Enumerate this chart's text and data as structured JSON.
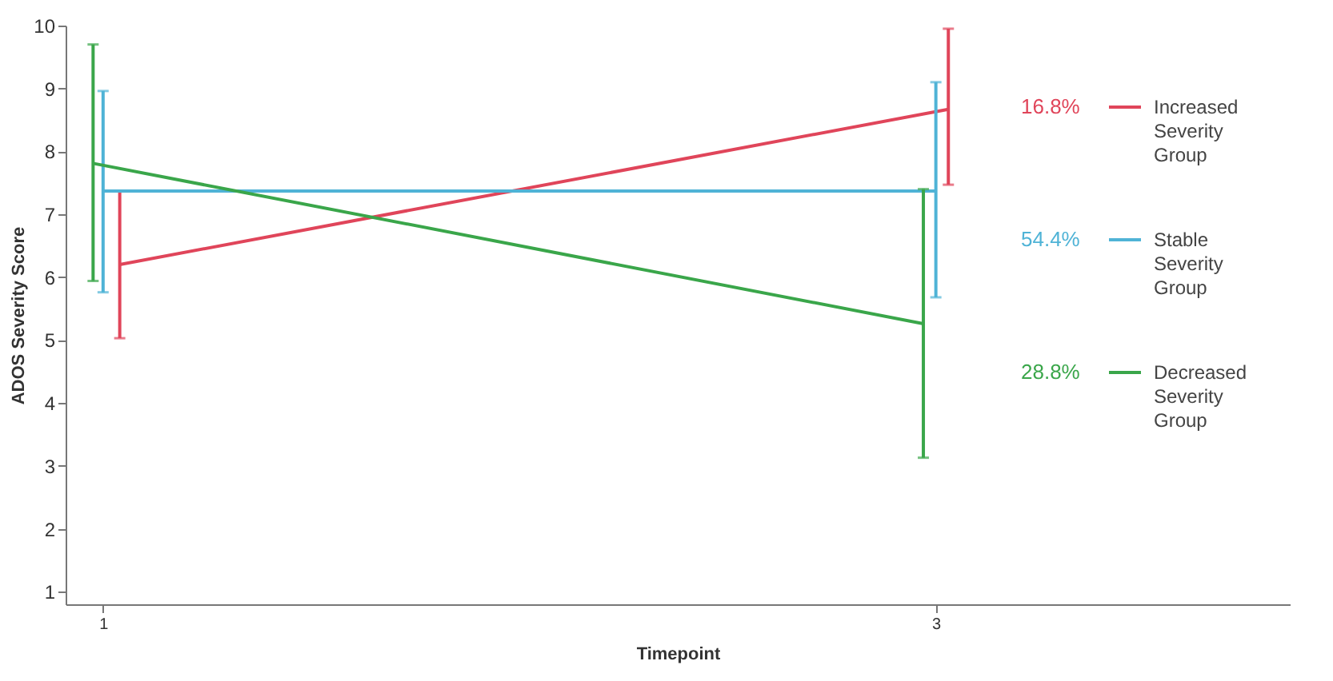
{
  "chart_data": {
    "type": "line",
    "xlabel": "Timepoint",
    "ylabel": "ADOS Severity Score",
    "xlim": [
      0.91,
      3.85
    ],
    "xticks": [
      1,
      3
    ],
    "ylim": [
      0.8,
      10
    ],
    "yticks": [
      1,
      2,
      3,
      4,
      5,
      6,
      7,
      8,
      9,
      10
    ],
    "grid": false,
    "legend": "right",
    "marker": "none",
    "line_style": "solid",
    "annotations": [
      "16.8%",
      "54.4%",
      "28.8%"
    ],
    "series": [
      {
        "name": "Increased Severity Group",
        "color": "#e0455a",
        "x": [
          1.04,
          3.03
        ],
        "values": [
          6.2,
          8.67
        ],
        "errors": [
          [
            5.03,
            7.37
          ],
          [
            7.47,
            9.95
          ]
        ]
      },
      {
        "name": "Stable Severity Group",
        "color": "#4fb3d6",
        "x": [
          1.0,
          3.0
        ],
        "values": [
          7.37,
          7.37
        ],
        "errors": [
          [
            5.76,
            8.96
          ],
          [
            5.68,
            9.1
          ]
        ]
      },
      {
        "name": "Decreased Severity Group",
        "color": "#3aa64a",
        "x": [
          0.976,
          2.97
        ],
        "values": [
          7.81,
          5.26
        ],
        "errors": [
          [
            5.94,
            9.7
          ],
          [
            3.13,
            7.4
          ]
        ]
      }
    ]
  }
}
